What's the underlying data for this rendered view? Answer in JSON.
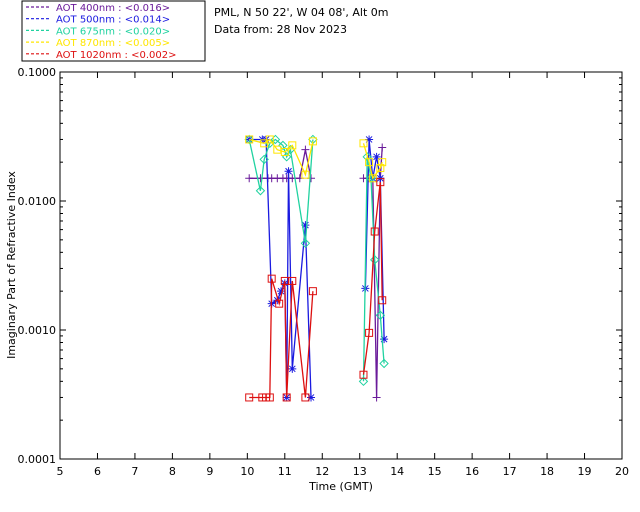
{
  "chart_data": {
    "type": "scatter",
    "title": "PML, N 50 22', W 04 08', Alt 0m",
    "subtitle": "Data from: 28 Nov 2023",
    "xlabel": "Time (GMT)",
    "ylabel": "Imaginary Part of Refractive Index",
    "xlim": [
      5,
      20
    ],
    "ylim": [
      0.0001,
      0.1
    ],
    "yscale": "log",
    "xticks": [
      "5",
      "6",
      "7",
      "8",
      "9",
      "10",
      "11",
      "12",
      "13",
      "14",
      "15",
      "16",
      "17",
      "18",
      "19",
      "20"
    ],
    "yticks": [
      {
        "value": 0.1,
        "label": "0.1000"
      },
      {
        "value": 0.01,
        "label": "0.0100"
      },
      {
        "value": 0.001,
        "label": "0.0010"
      },
      {
        "value": 0.0001,
        "label": "0.0001"
      }
    ],
    "legend_position": "top-left",
    "series": [
      {
        "name": "AOT  400nm : <0.016>",
        "color": "#6a1b9a",
        "marker": "plus",
        "x": [
          10.05,
          10.35,
          10.55,
          10.65,
          10.8,
          10.95,
          11.05,
          11.1,
          11.2,
          11.4,
          11.55,
          11.7,
          13.1,
          13.25,
          13.35,
          13.45,
          13.55,
          13.6
        ],
        "y": [
          0.015,
          0.015,
          0.015,
          0.015,
          0.015,
          0.015,
          0.015,
          0.015,
          0.015,
          0.015,
          0.025,
          0.015,
          0.015,
          0.015,
          0.015,
          0.0003,
          0.015,
          0.026
        ]
      },
      {
        "name": "AOT  500nm : <0.014>",
        "color": "#1a1ae0",
        "marker": "star",
        "x": [
          10.05,
          10.4,
          10.5,
          10.65,
          10.8,
          10.9,
          11.0,
          11.05,
          11.1,
          11.2,
          11.55,
          11.7,
          13.15,
          13.25,
          13.35,
          13.45,
          13.55,
          13.65
        ],
        "y": [
          0.03,
          0.03,
          0.03,
          0.0016,
          0.0017,
          0.002,
          0.0023,
          0.0003,
          0.017,
          0.0005,
          0.0065,
          0.0003,
          0.0021,
          0.03,
          0.015,
          0.022,
          0.015,
          0.00085
        ]
      },
      {
        "name": "AOT  675nm : <0.020>",
        "color": "#20d2a0",
        "marker": "diamond",
        "x": [
          10.05,
          10.35,
          10.45,
          10.6,
          10.75,
          10.95,
          11.05,
          11.15,
          11.55,
          11.75,
          13.1,
          13.2,
          13.3,
          13.4,
          13.55,
          13.65
        ],
        "y": [
          0.03,
          0.012,
          0.021,
          0.028,
          0.03,
          0.027,
          0.022,
          0.025,
          0.0047,
          0.03,
          0.0004,
          0.022,
          0.015,
          0.0035,
          0.0013,
          0.00055
        ]
      },
      {
        "name": "AOT  870nm : <0.005>",
        "color": "#ffe600",
        "marker": "square",
        "x": [
          10.05,
          10.45,
          10.6,
          10.8,
          11.0,
          11.2,
          11.55,
          11.75,
          13.1,
          13.25,
          13.35,
          13.55,
          13.6
        ],
        "y": [
          0.03,
          0.028,
          0.03,
          0.025,
          0.024,
          0.027,
          0.016,
          0.029,
          0.028,
          0.02,
          0.015,
          0.018,
          0.02
        ]
      },
      {
        "name": "AOT 1020nm : <0.002>",
        "color": "#dd1010",
        "marker": "square",
        "x": [
          10.05,
          10.4,
          10.5,
          10.6,
          10.65,
          10.85,
          11.0,
          11.05,
          11.2,
          11.55,
          11.75,
          13.1,
          13.25,
          13.4,
          13.55,
          13.6
        ],
        "y": [
          0.0003,
          0.0003,
          0.0003,
          0.0003,
          0.0025,
          0.0016,
          0.0024,
          0.0003,
          0.0024,
          0.0003,
          0.002,
          0.00045,
          0.00095,
          0.0058,
          0.014,
          0.0017
        ]
      }
    ]
  }
}
